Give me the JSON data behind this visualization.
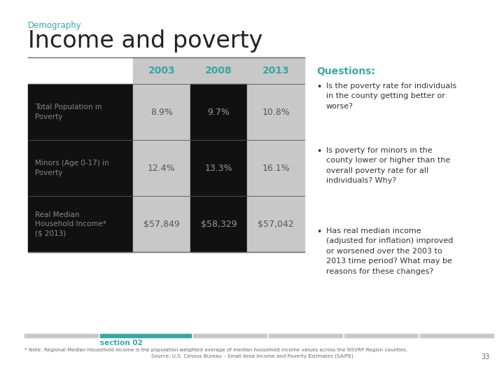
{
  "title_small": "Demography",
  "title_large": "Income and poverty",
  "title_small_color": "#3aa6a6",
  "title_large_color": "#222222",
  "questions_title": "Questions:",
  "questions_color": "#3aa6a6",
  "questions": [
    "Is the poverty rate for individuals\nin the county getting better or\nworse?",
    "Is poverty for minors in the\ncounty lower or higher than the\noverall poverty rate for all\nindividuals? Why?",
    "Has real median income\n(adjusted for inflation) improved\nor worsened over the 2003 to\n2013 time period? What may be\nreasons for these changes?"
  ],
  "columns": [
    "2003",
    "2008",
    "2013"
  ],
  "rows": [
    "Total Population in\nPoverty",
    "Minors (Age 0-17) in\nPoverty",
    "Real Median\nHousehold Income*\n($ 2013)"
  ],
  "values": [
    [
      "8.9%",
      "9.7%",
      "10.8%"
    ],
    [
      "12.4%",
      "13.3%",
      "16.1%"
    ],
    [
      "$57,849",
      "$58,329",
      "$57,042"
    ]
  ],
  "col_header_bg": "#c8c8c8",
  "col_header_text": "#3aa6a6",
  "row_label_bg_dark": "#111111",
  "row_label_text": "#888888",
  "cell_bg_dark": "#111111",
  "cell_bg_light": "#c8c8c8",
  "cell_text_dark": "#999999",
  "cell_text_light": "#555555",
  "footer_bar_color": "#c8c8c8",
  "footer_highlight_color": "#3aa6a6",
  "section_text": "section 02",
  "section_color": "#3aa6a6",
  "footnote1": "* Note: Regional Median Household income is the population weighted average of median household income values across the NSVRP Region counties.",
  "footnote2": "Source: U.S. Census Bureau – Small Area Income and Poverty Estimates (SAIPE)",
  "page_number": "33",
  "bg_color": "#ffffff"
}
